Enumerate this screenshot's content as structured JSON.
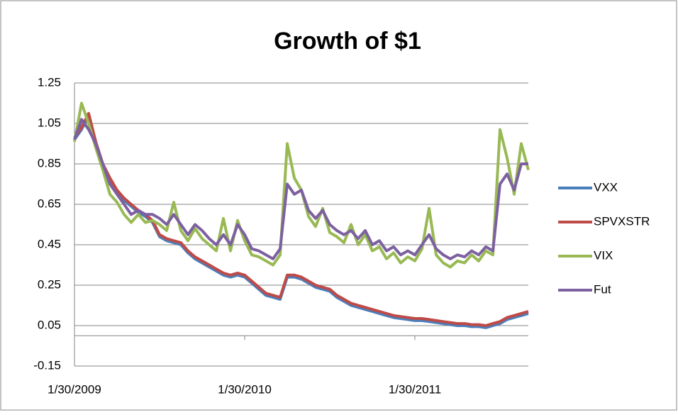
{
  "chart_data": {
    "type": "line",
    "title": "Growth of $1",
    "categories": [
      "1/30/2009",
      null,
      null,
      null,
      null,
      null,
      null,
      null,
      null,
      null,
      null,
      null,
      null,
      null,
      null,
      null,
      null,
      null,
      null,
      null,
      null,
      null,
      null,
      null,
      "1/30/2010",
      null,
      null,
      null,
      null,
      null,
      null,
      null,
      null,
      null,
      null,
      null,
      null,
      null,
      null,
      null,
      null,
      null,
      null,
      null,
      null,
      null,
      null,
      null,
      "1/30/2011",
      null,
      null,
      null,
      null,
      null,
      null,
      null,
      null,
      null,
      null,
      null,
      null,
      null,
      null,
      null,
      null
    ],
    "series": [
      {
        "name": "VXX",
        "color": "#4a7ebb",
        "values": [
          0.97,
          1.02,
          1.09,
          0.95,
          0.84,
          0.77,
          0.71,
          0.67,
          0.64,
          0.61,
          0.59,
          0.56,
          0.49,
          0.47,
          0.46,
          0.45,
          0.41,
          0.38,
          0.36,
          0.34,
          0.32,
          0.3,
          0.29,
          0.3,
          0.29,
          0.26,
          0.23,
          0.2,
          0.19,
          0.18,
          0.29,
          0.29,
          0.28,
          0.26,
          0.24,
          0.23,
          0.22,
          0.19,
          0.17,
          0.15,
          0.14,
          0.13,
          0.12,
          0.11,
          0.1,
          0.09,
          0.085,
          0.08,
          0.075,
          0.075,
          0.07,
          0.065,
          0.06,
          0.055,
          0.05,
          0.05,
          0.045,
          0.045,
          0.04,
          0.05,
          0.06,
          0.08,
          0.09,
          0.1,
          0.11
        ]
      },
      {
        "name": "SPVXSTR",
        "color": "#be4b48",
        "values": [
          0.98,
          1.03,
          1.1,
          0.96,
          0.85,
          0.78,
          0.72,
          0.68,
          0.65,
          0.62,
          0.6,
          0.57,
          0.5,
          0.48,
          0.47,
          0.46,
          0.42,
          0.39,
          0.37,
          0.35,
          0.33,
          0.31,
          0.3,
          0.31,
          0.3,
          0.27,
          0.24,
          0.21,
          0.2,
          0.19,
          0.3,
          0.3,
          0.29,
          0.27,
          0.25,
          0.24,
          0.23,
          0.2,
          0.18,
          0.16,
          0.15,
          0.14,
          0.13,
          0.12,
          0.11,
          0.1,
          0.095,
          0.09,
          0.085,
          0.085,
          0.08,
          0.075,
          0.07,
          0.065,
          0.06,
          0.06,
          0.055,
          0.055,
          0.05,
          0.06,
          0.07,
          0.09,
          0.1,
          0.11,
          0.12
        ]
      },
      {
        "name": "VIX",
        "color": "#98b954",
        "values": [
          0.96,
          1.15,
          1.05,
          0.93,
          0.82,
          0.7,
          0.66,
          0.6,
          0.56,
          0.6,
          0.56,
          0.57,
          0.55,
          0.52,
          0.66,
          0.52,
          0.47,
          0.53,
          0.48,
          0.45,
          0.42,
          0.58,
          0.42,
          0.57,
          0.47,
          0.4,
          0.39,
          0.37,
          0.35,
          0.4,
          0.95,
          0.78,
          0.72,
          0.59,
          0.54,
          0.63,
          0.51,
          0.49,
          0.46,
          0.55,
          0.45,
          0.5,
          0.42,
          0.44,
          0.38,
          0.41,
          0.36,
          0.39,
          0.37,
          0.43,
          0.63,
          0.4,
          0.36,
          0.34,
          0.37,
          0.36,
          0.4,
          0.37,
          0.42,
          0.4,
          1.02,
          0.88,
          0.7,
          0.95,
          0.82
        ]
      },
      {
        "name": "Fut",
        "color": "#7d60a0",
        "values": [
          0.97,
          1.07,
          1.02,
          0.95,
          0.85,
          0.75,
          0.7,
          0.65,
          0.6,
          0.62,
          0.6,
          0.6,
          0.58,
          0.55,
          0.6,
          0.55,
          0.5,
          0.55,
          0.52,
          0.48,
          0.45,
          0.5,
          0.45,
          0.55,
          0.5,
          0.43,
          0.42,
          0.4,
          0.38,
          0.43,
          0.75,
          0.7,
          0.72,
          0.62,
          0.58,
          0.62,
          0.55,
          0.52,
          0.5,
          0.52,
          0.48,
          0.52,
          0.45,
          0.47,
          0.42,
          0.44,
          0.4,
          0.42,
          0.4,
          0.45,
          0.5,
          0.43,
          0.4,
          0.38,
          0.4,
          0.39,
          0.42,
          0.4,
          0.44,
          0.42,
          0.75,
          0.8,
          0.72,
          0.85,
          0.85
        ]
      }
    ],
    "ylim": [
      -0.15,
      1.25
    ],
    "yticks": [
      -0.15,
      0.05,
      0.25,
      0.45,
      0.65,
      0.85,
      1.05,
      1.25
    ],
    "grid": true,
    "legend": "right"
  }
}
